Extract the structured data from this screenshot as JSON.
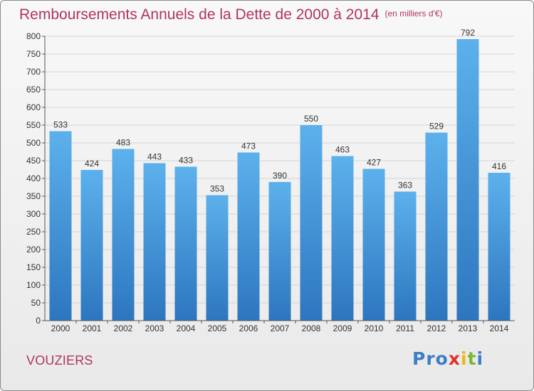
{
  "chart_data": {
    "type": "bar",
    "title": "Remboursements Annuels de la Dette de 2000 à 2014",
    "subtitle": "(en milliers d'€)",
    "categories": [
      "2000",
      "2001",
      "2002",
      "2003",
      "2004",
      "2005",
      "2006",
      "2007",
      "2008",
      "2009",
      "2010",
      "2011",
      "2012",
      "2013",
      "2014"
    ],
    "values": [
      533,
      424,
      483,
      443,
      433,
      353,
      473,
      390,
      550,
      463,
      427,
      363,
      529,
      792,
      416
    ],
    "ylim": [
      0,
      800
    ],
    "yticks": [
      0,
      50,
      100,
      150,
      200,
      250,
      300,
      350,
      400,
      450,
      500,
      550,
      600,
      650,
      700,
      750,
      800
    ],
    "xlabel": "",
    "ylabel": "",
    "grid": true,
    "bar_color": "#4a98dc"
  },
  "location": "VOUZIERS",
  "logo": {
    "letters": [
      {
        "char": "P",
        "color": "#3d7ec5"
      },
      {
        "char": "r",
        "color": "#3d7ec5"
      },
      {
        "char": "o",
        "color": "#3d7ec5"
      },
      {
        "char": "x",
        "color": "#e2312a"
      },
      {
        "char": "i",
        "color": "#f0b516"
      },
      {
        "char": "t",
        "color": "#79b735"
      },
      {
        "char": "i",
        "color": "#3d7ec5"
      }
    ]
  }
}
